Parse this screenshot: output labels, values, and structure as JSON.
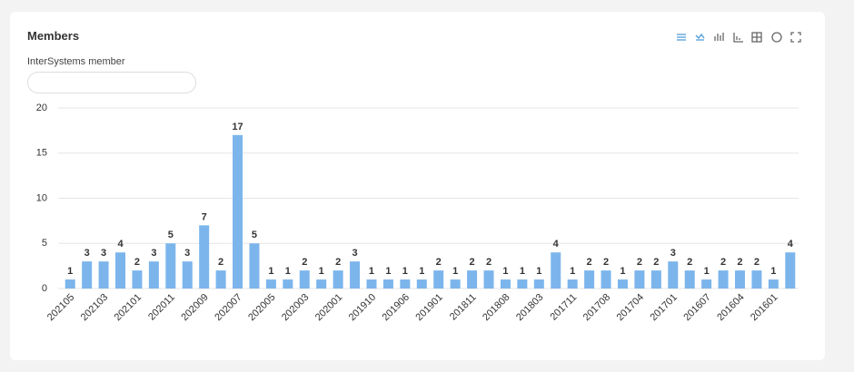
{
  "filter": {
    "label": "InterSystems member"
  },
  "chart_data": {
    "type": "bar",
    "title": "Members",
    "categories": [
      "202105",
      null,
      "202103",
      null,
      "202101",
      null,
      "202011",
      null,
      "202009",
      null,
      "202007",
      null,
      "202005",
      null,
      "202003",
      null,
      "202001",
      null,
      "201910",
      null,
      "201906",
      null,
      "201901",
      null,
      "201811",
      null,
      "201808",
      null,
      "201803",
      null,
      "201711",
      null,
      "201708",
      null,
      "201704",
      null,
      "201701",
      null,
      "201607",
      null,
      "201604",
      null,
      "201601",
      null
    ],
    "values": [
      1,
      3,
      3,
      4,
      2,
      3,
      5,
      3,
      7,
      2,
      17,
      5,
      1,
      1,
      2,
      1,
      2,
      3,
      1,
      1,
      1,
      1,
      2,
      1,
      2,
      2,
      1,
      1,
      1,
      4,
      1,
      2,
      2,
      1,
      2,
      2,
      3,
      2,
      1,
      2,
      2,
      2,
      1,
      4
    ],
    "color": "#7cb5ec",
    "ylim": [
      0,
      20
    ],
    "yticks": [
      0,
      5,
      10,
      15,
      20
    ],
    "grid": true
  }
}
